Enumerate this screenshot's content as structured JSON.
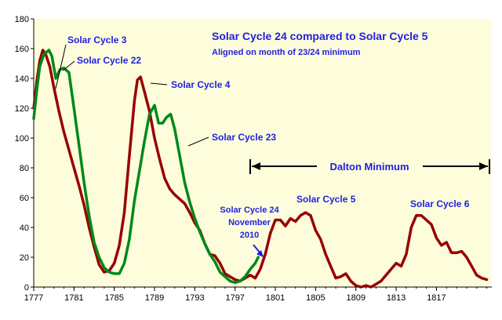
{
  "chart_data": {
    "type": "line",
    "title": "Solar Cycle 24 compared to Solar Cycle 5",
    "subtitle": "Aligned on month of 23/24 minimum",
    "xlim": [
      1777,
      1822.5
    ],
    "ylim": [
      0,
      180
    ],
    "x_ticks": [
      "1777",
      "1781",
      "1785",
      "1789",
      "1793",
      "1797",
      "1801",
      "1805",
      "1809",
      "1813",
      "1817"
    ],
    "y_ticks": [
      "0",
      "20",
      "40",
      "60",
      "80",
      "100",
      "120",
      "140",
      "160",
      "180"
    ],
    "grid": false,
    "background_color": "#fdfddc",
    "series": [
      {
        "color": "#990000",
        "points": [
          [
            1777.0,
            120
          ],
          [
            1777.3,
            138
          ],
          [
            1777.6,
            152
          ],
          [
            1777.9,
            159
          ],
          [
            1778.2,
            156
          ],
          [
            1778.6,
            148
          ],
          [
            1779.0,
            134
          ],
          [
            1779.5,
            118
          ],
          [
            1780.0,
            104
          ],
          [
            1780.5,
            92
          ],
          [
            1781.0,
            80
          ],
          [
            1781.5,
            68
          ],
          [
            1782.0,
            55
          ],
          [
            1782.5,
            40
          ],
          [
            1783.0,
            27
          ],
          [
            1783.5,
            15
          ],
          [
            1784.0,
            10
          ],
          [
            1784.5,
            11
          ],
          [
            1785.0,
            16
          ],
          [
            1785.5,
            28
          ],
          [
            1786.0,
            50
          ],
          [
            1786.5,
            88
          ],
          [
            1787.0,
            125
          ],
          [
            1787.3,
            139
          ],
          [
            1787.6,
            141
          ],
          [
            1788.0,
            131
          ],
          [
            1788.5,
            118
          ],
          [
            1789.0,
            100
          ],
          [
            1789.5,
            86
          ],
          [
            1790.0,
            73
          ],
          [
            1790.5,
            66
          ],
          [
            1791.0,
            62
          ],
          [
            1791.5,
            59
          ],
          [
            1792.0,
            56
          ],
          [
            1792.5,
            50
          ],
          [
            1793.0,
            43
          ],
          [
            1793.5,
            38
          ],
          [
            1794.0,
            29
          ],
          [
            1794.5,
            22
          ],
          [
            1795.0,
            21
          ],
          [
            1795.5,
            16
          ],
          [
            1796.0,
            9
          ],
          [
            1796.5,
            7
          ],
          [
            1797.0,
            5
          ],
          [
            1797.5,
            4
          ],
          [
            1798.0,
            6
          ],
          [
            1798.5,
            8
          ],
          [
            1799.0,
            6
          ],
          [
            1799.5,
            12
          ],
          [
            1800.0,
            22
          ],
          [
            1800.5,
            36
          ],
          [
            1801.0,
            45
          ],
          [
            1801.5,
            45
          ],
          [
            1802.0,
            41
          ],
          [
            1802.5,
            46
          ],
          [
            1803.0,
            44
          ],
          [
            1803.5,
            48
          ],
          [
            1804.0,
            50
          ],
          [
            1804.5,
            48
          ],
          [
            1805.0,
            38
          ],
          [
            1805.5,
            32
          ],
          [
            1806.0,
            22
          ],
          [
            1806.5,
            14
          ],
          [
            1807.0,
            6
          ],
          [
            1807.5,
            7
          ],
          [
            1808.0,
            9
          ],
          [
            1808.5,
            4
          ],
          [
            1809.0,
            1
          ],
          [
            1809.5,
            0
          ],
          [
            1810.0,
            1
          ],
          [
            1810.5,
            0
          ],
          [
            1811.0,
            2
          ],
          [
            1811.5,
            4
          ],
          [
            1812.0,
            8
          ],
          [
            1812.5,
            12
          ],
          [
            1813.0,
            16
          ],
          [
            1813.5,
            14
          ],
          [
            1814.0,
            22
          ],
          [
            1814.5,
            40
          ],
          [
            1815.0,
            48
          ],
          [
            1815.5,
            48
          ],
          [
            1816.0,
            45
          ],
          [
            1816.5,
            42
          ],
          [
            1817.0,
            33
          ],
          [
            1817.5,
            28
          ],
          [
            1818.0,
            30
          ],
          [
            1818.5,
            23
          ],
          [
            1819.0,
            23
          ],
          [
            1819.5,
            24
          ],
          [
            1820.0,
            20
          ],
          [
            1820.5,
            14
          ],
          [
            1821.0,
            8
          ],
          [
            1821.5,
            6
          ],
          [
            1822.0,
            5
          ]
        ]
      },
      {
        "color": "#00881a",
        "points": [
          [
            1777.0,
            113
          ],
          [
            1777.3,
            132
          ],
          [
            1777.6,
            148
          ],
          [
            1778.0,
            156
          ],
          [
            1778.5,
            159
          ],
          [
            1778.8,
            155
          ],
          [
            1779.2,
            140
          ],
          [
            1779.6,
            146
          ],
          [
            1780.0,
            147
          ],
          [
            1780.5,
            144
          ],
          [
            1781.0,
            120
          ],
          [
            1781.5,
            95
          ],
          [
            1782.0,
            70
          ],
          [
            1782.5,
            48
          ],
          [
            1783.0,
            30
          ],
          [
            1783.5,
            20
          ],
          [
            1784.0,
            13
          ],
          [
            1784.5,
            10
          ],
          [
            1785.0,
            9
          ],
          [
            1785.5,
            9
          ],
          [
            1786.0,
            16
          ],
          [
            1786.5,
            32
          ],
          [
            1787.0,
            58
          ],
          [
            1787.5,
            78
          ],
          [
            1788.0,
            98
          ],
          [
            1788.5,
            116
          ],
          [
            1789.0,
            122
          ],
          [
            1789.4,
            110
          ],
          [
            1789.8,
            110
          ],
          [
            1790.2,
            114
          ],
          [
            1790.6,
            116
          ],
          [
            1791.0,
            106
          ],
          [
            1791.5,
            88
          ],
          [
            1792.0,
            70
          ],
          [
            1792.5,
            57
          ],
          [
            1793.0,
            46
          ],
          [
            1793.5,
            37
          ],
          [
            1794.0,
            29
          ],
          [
            1794.5,
            22
          ],
          [
            1795.0,
            17
          ],
          [
            1795.5,
            10
          ],
          [
            1796.0,
            7
          ],
          [
            1796.5,
            4
          ],
          [
            1797.0,
            3
          ],
          [
            1797.5,
            4
          ],
          [
            1798.0,
            7
          ],
          [
            1798.5,
            12
          ],
          [
            1799.0,
            16
          ],
          [
            1799.3,
            20
          ]
        ]
      }
    ],
    "annotations": [
      {
        "text": "Solar Cycle 3"
      },
      {
        "text": "Solar Cycle 22"
      },
      {
        "text": "Solar Cycle 4"
      },
      {
        "text": "Solar Cycle 23"
      },
      {
        "text": "Dalton Minimum"
      },
      {
        "text": "Solar Cycle 24"
      },
      {
        "text": "November"
      },
      {
        "text": "2010"
      },
      {
        "text": "Solar Cycle 5"
      },
      {
        "text": "Solar Cycle 6"
      }
    ]
  }
}
